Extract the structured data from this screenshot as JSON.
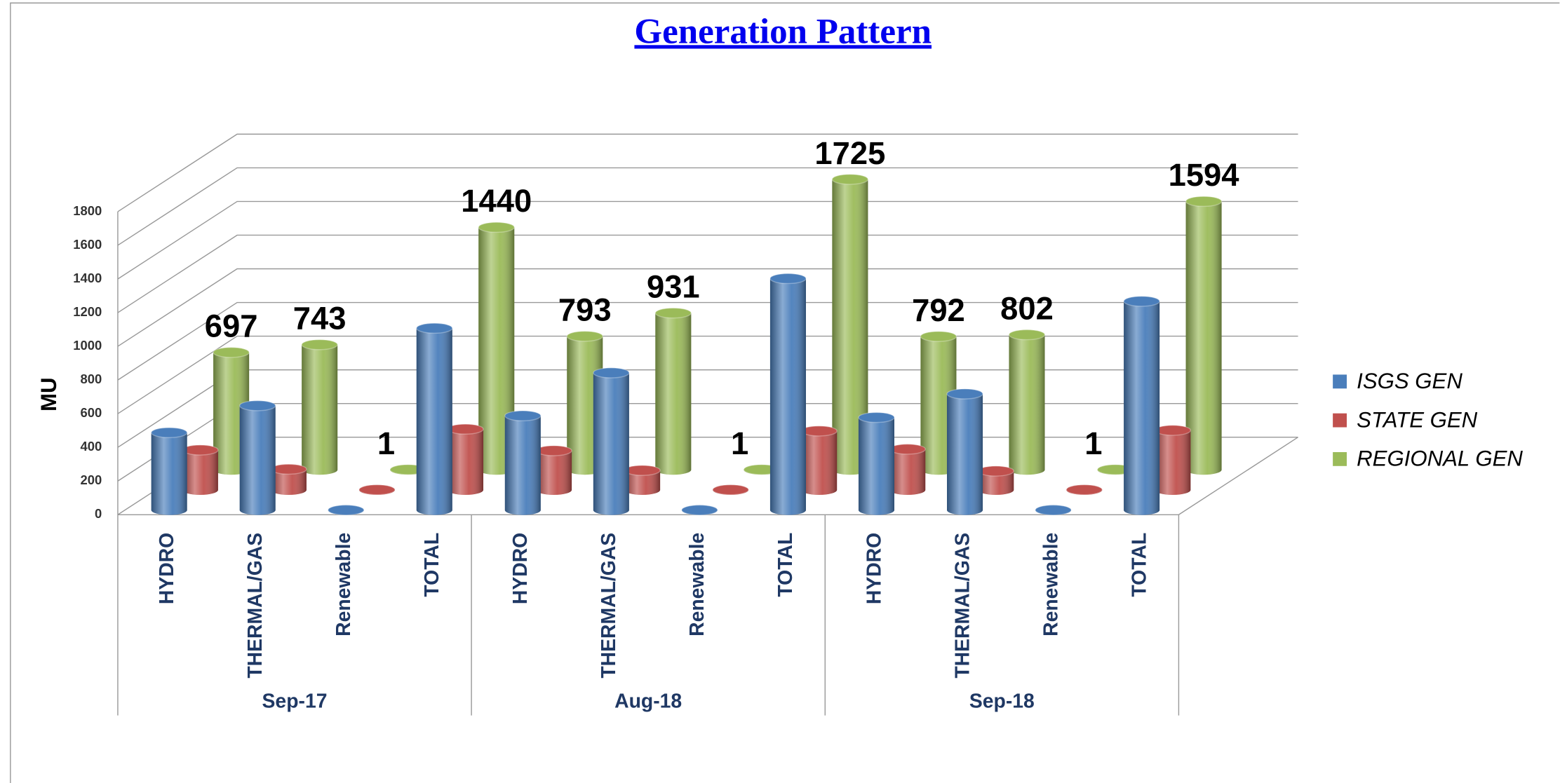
{
  "chart_data": {
    "type": "bar3d",
    "title": "Generation Pattern",
    "ylabel": "MU",
    "categories": [
      "HYDRO",
      "THERMAL/GAS",
      "Renewable",
      "TOTAL",
      "HYDRO",
      "THERMAL/GAS",
      "Renewable",
      "TOTAL",
      "HYDRO",
      "THERMAL/GAS",
      "Renewable",
      "TOTAL"
    ],
    "groups": [
      "Sep-17",
      "Aug-18",
      "Sep-18"
    ],
    "series": [
      {
        "name": "ISGS GEN",
        "color": "#4a7ebb",
        "values": [
          460,
          620,
          0,
          1080,
          560,
          815,
          0,
          1375,
          550,
          690,
          0,
          1240
        ]
      },
      {
        "name": "STATE GEN",
        "color": "#c0504d",
        "values": [
          237,
          123,
          1,
          361,
          233,
          116,
          1,
          350,
          242,
          112,
          1,
          354
        ]
      },
      {
        "name": "REGIONAL GEN",
        "color": "#9bbb59",
        "values": [
          697,
          743,
          1,
          1440,
          793,
          931,
          1,
          1725,
          792,
          802,
          1,
          1594
        ],
        "show_labels": true
      }
    ],
    "ylim": [
      0,
      1800
    ],
    "yticks": [
      0,
      200,
      400,
      600,
      800,
      1000,
      1200,
      1400,
      1600,
      1800
    ],
    "grid": true,
    "legend": "right"
  }
}
